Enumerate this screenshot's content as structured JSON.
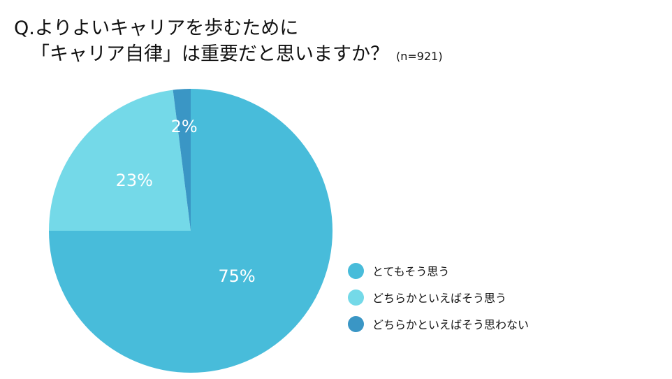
{
  "header": {
    "title_line1": "Q.よりよいキャリアを歩むために",
    "title_line2": "「キャリア自律」は重要だと思いますか？",
    "sample_size": "(n=921)"
  },
  "chart_data": {
    "type": "pie",
    "title": "Q.よりよいキャリアを歩むために「キャリア自律」は重要だと思いますか？ (n=921)",
    "slices": [
      {
        "label": "とてもそう思う",
        "value": 75,
        "value_label": "75%",
        "color": "#48BCDA"
      },
      {
        "label": "どちらかといえばそう思う",
        "value": 23,
        "value_label": "23%",
        "color": "#74D9E8"
      },
      {
        "label": "どちらかといえばそう思わない",
        "value": 2,
        "value_label": "2%",
        "color": "#3A96C5"
      }
    ],
    "start": "12 o'clock",
    "direction": "clockwise",
    "legend_placement": "bottom-right"
  }
}
